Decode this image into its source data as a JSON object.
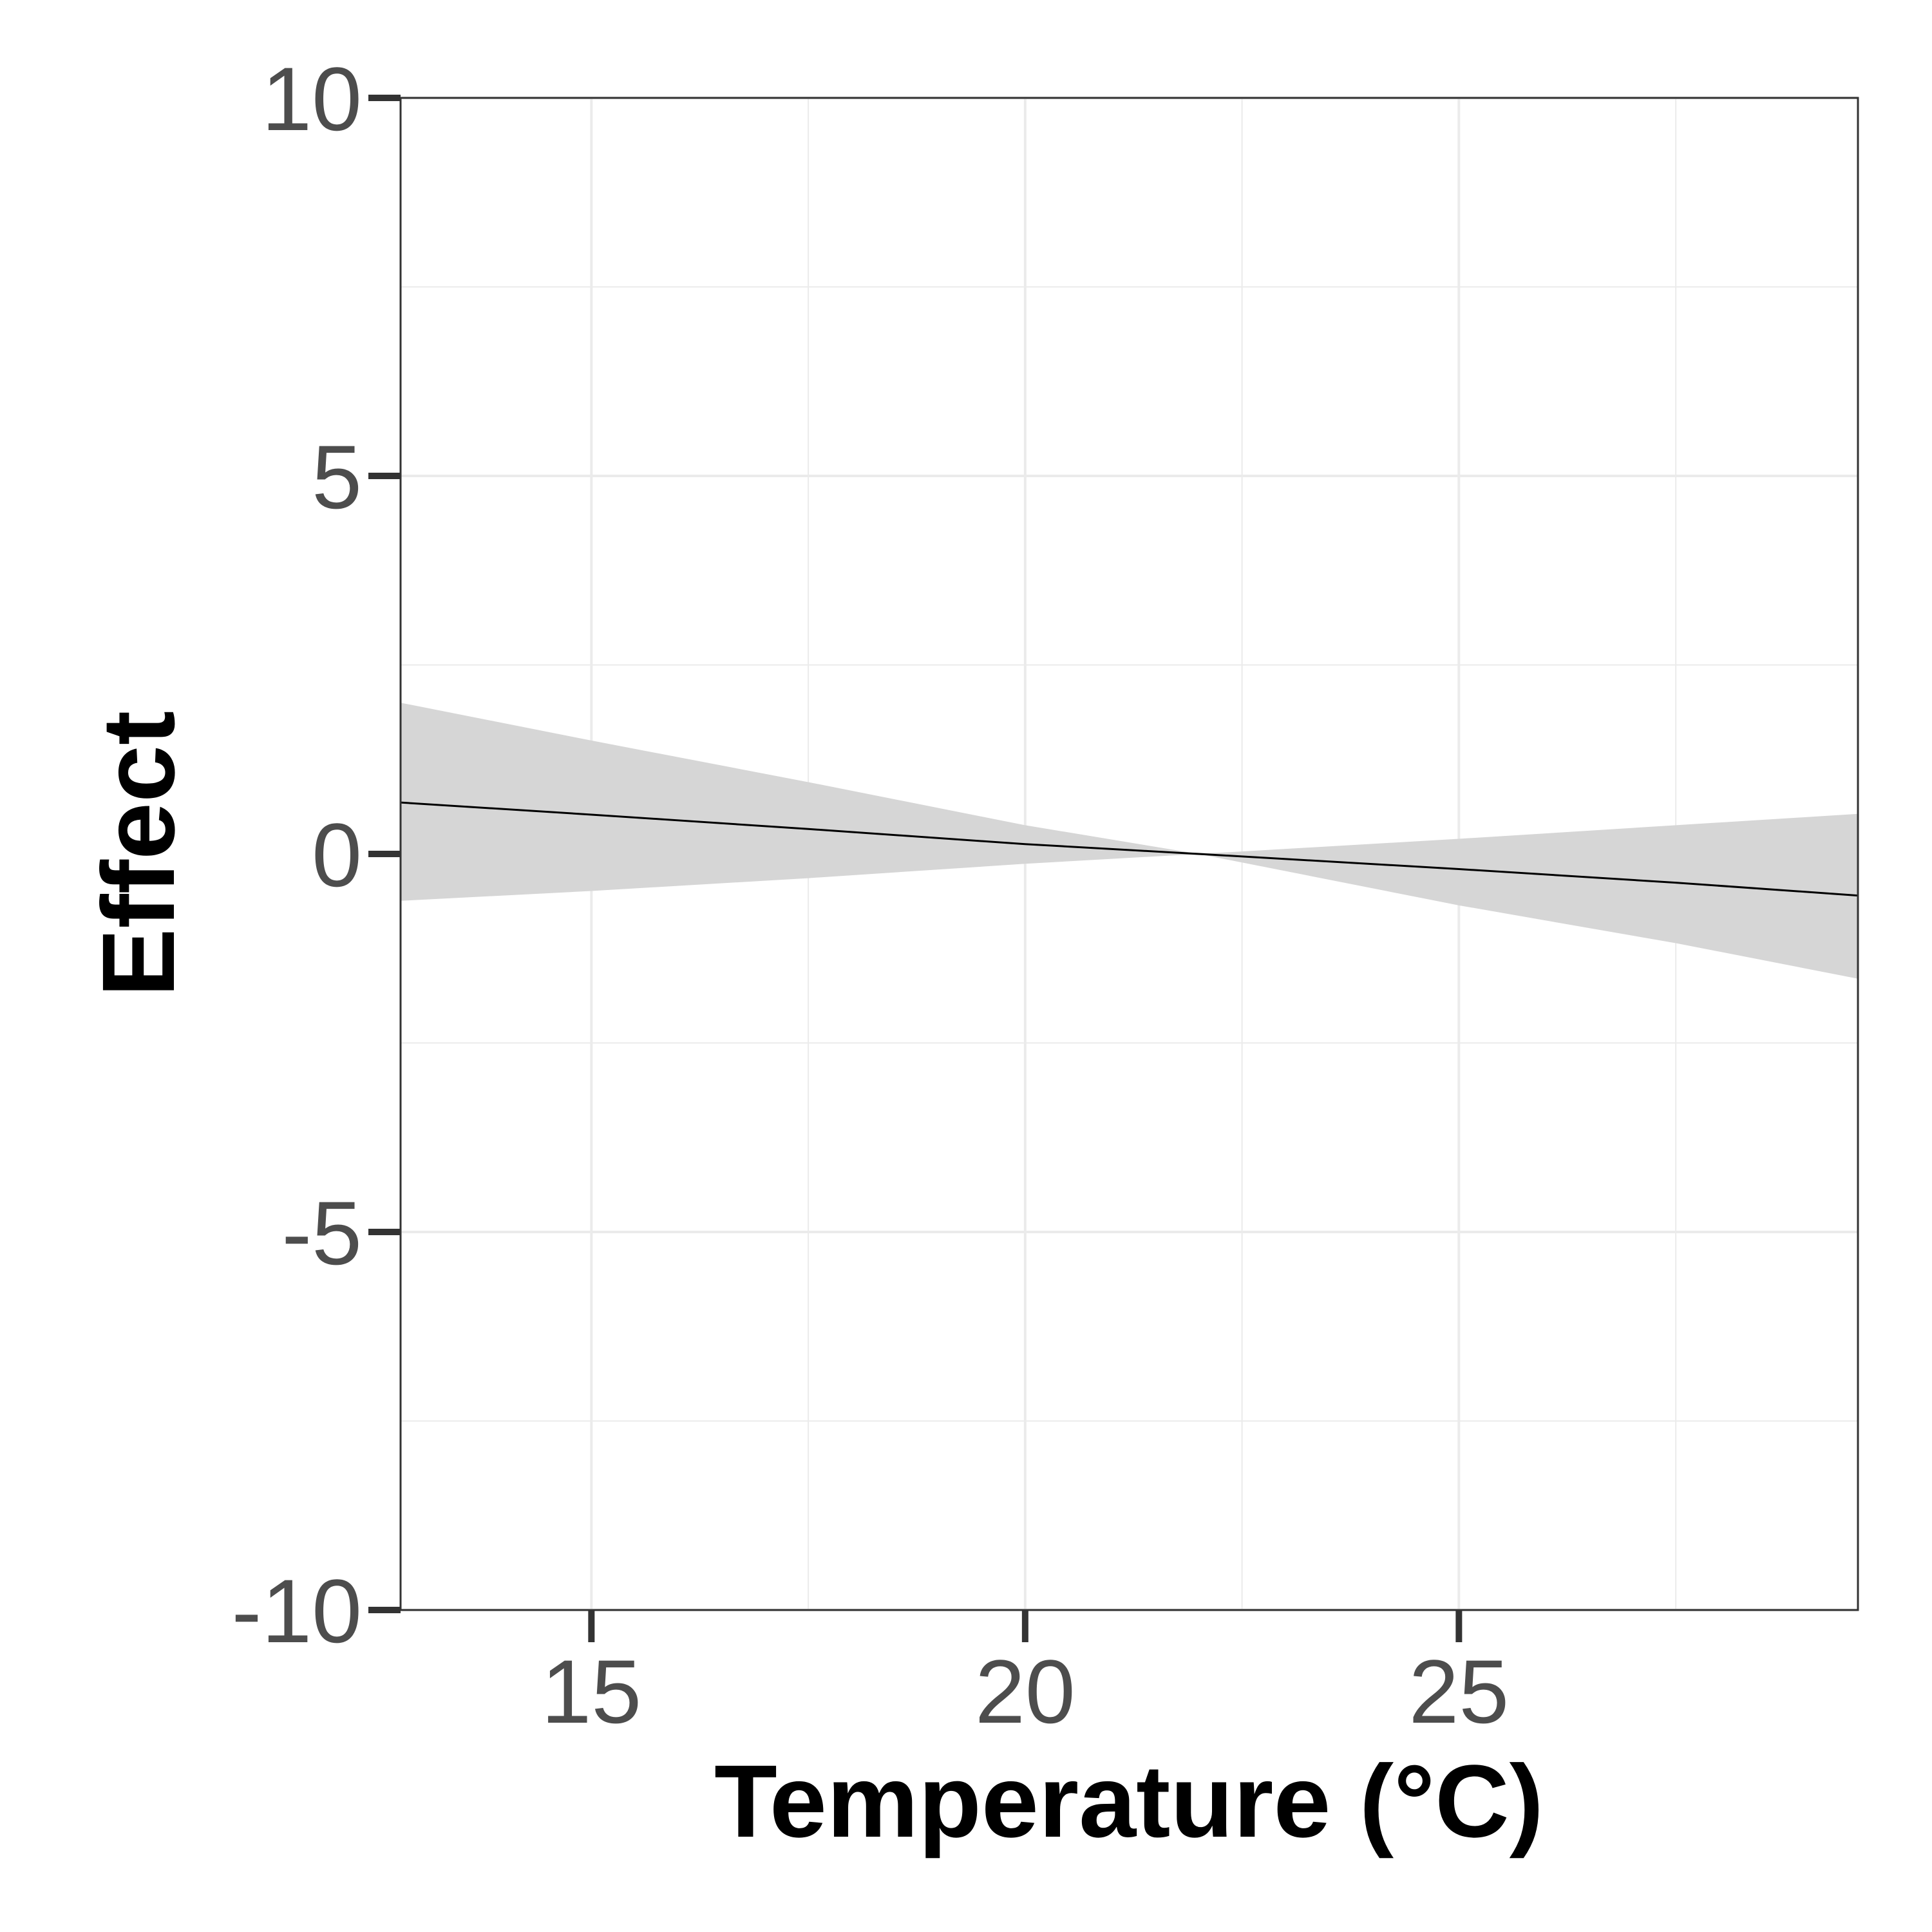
{
  "chart_data": {
    "type": "line",
    "title": "",
    "xlabel": "Temperature (°C)",
    "ylabel": "Effect",
    "xlim": [
      12.8,
      29.6
    ],
    "ylim": [
      -10,
      10
    ],
    "x_ticks": [
      15,
      20,
      25
    ],
    "y_ticks": [
      -10,
      -5,
      0,
      5,
      10
    ],
    "x_tick_labels": [
      "15",
      "20",
      "25"
    ],
    "y_tick_labels": [
      "-10",
      "-5",
      "0",
      "5",
      "10"
    ],
    "grid": true,
    "legend": "none",
    "series": [
      {
        "x": [
          12.8,
          15,
          17.5,
          20,
          22.0,
          25,
          27.5,
          29.6
        ],
        "y": [
          0.68,
          0.52,
          0.33,
          0.13,
          0.0,
          -0.2,
          -0.38,
          -0.55
        ],
        "ci_lower": [
          -0.62,
          -0.49,
          -0.32,
          -0.13,
          0.0,
          -0.68,
          -1.18,
          -1.65
        ],
        "ci_upper": [
          2.0,
          1.5,
          0.95,
          0.38,
          0.0,
          0.2,
          0.38,
          0.53
        ]
      }
    ],
    "colors": {
      "line": "#000000",
      "band": "#d6d6d6",
      "grid": "#ebebeb",
      "frame": "#333333"
    }
  }
}
